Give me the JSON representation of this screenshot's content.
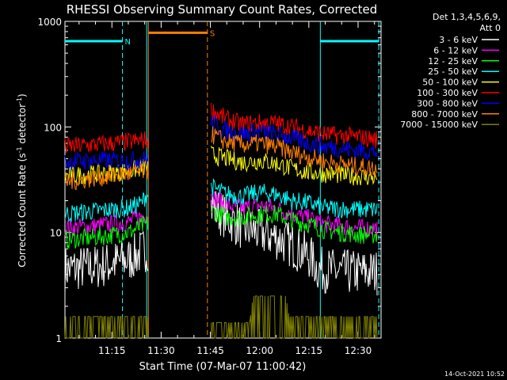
{
  "chart_data": {
    "type": "line",
    "title": "RHESSI Observing Summary Count Rates, Corrected",
    "xlabel": "Start Time (07-Mar-07 11:00:42)",
    "ylabel": "Corrected Count Rate (s",
    "ylabel_sup": "-1",
    "ylabel_mid": " detector",
    "ylabel_end": ")",
    "footer": "14-Oct-2021 10:52",
    "y_scale": "log",
    "ylim": [
      1,
      1000
    ],
    "y_ticks": [
      "1",
      "10",
      "100",
      "1000"
    ],
    "x_range_minutes": [
      0.7,
      97.0
    ],
    "x_ticks": [
      {
        "label": "11:15",
        "min": 15
      },
      {
        "label": "11:30",
        "min": 30
      },
      {
        "label": "11:45",
        "min": 45
      },
      {
        "label": "12:00",
        "min": 60
      },
      {
        "label": "12:15",
        "min": 75
      },
      {
        "label": "12:30",
        "min": 90
      }
    ],
    "legend": {
      "header_line1": "Det 1,3,4,5,6,9,",
      "header_line2": "Att 0",
      "placement": "right"
    },
    "flags": [
      {
        "label": "N",
        "color": "#00ffff",
        "segments": [
          [
            0.7,
            18.2
          ],
          [
            78.5,
            96.3
          ]
        ],
        "level": 650,
        "boundaries": [
          18.2,
          96.3
        ],
        "solid_boundaries": [
          25.6,
          78.5
        ]
      },
      {
        "label": "S",
        "color": "#ff8000",
        "segments": [
          [
            26.1,
            44.1
          ]
        ],
        "level": 780,
        "boundaries": [
          44.1
        ],
        "solid_boundaries": [
          26.1
        ]
      }
    ],
    "gaps": [
      [
        26.1,
        45.2
      ]
    ],
    "series": [
      {
        "name": "3 - 6 keV",
        "color": "#ffffff",
        "points": [
          [
            0.7,
            4.5
          ],
          [
            10,
            4.7
          ],
          [
            20,
            5.5
          ],
          [
            25.5,
            7
          ],
          [
            45.2,
            18
          ],
          [
            50,
            14
          ],
          [
            55,
            11
          ],
          [
            60,
            10
          ],
          [
            65,
            9
          ],
          [
            70,
            7.5
          ],
          [
            75,
            6
          ],
          [
            78,
            4.5
          ],
          [
            85,
            4.2
          ],
          [
            96,
            4.2
          ]
        ]
      },
      {
        "name": "6 - 12 keV",
        "color": "#ff00ff",
        "points": [
          [
            0.7,
            11
          ],
          [
            10,
            11.5
          ],
          [
            20,
            12.5
          ],
          [
            25.5,
            15
          ],
          [
            45.2,
            22
          ],
          [
            50,
            18
          ],
          [
            55,
            17
          ],
          [
            60,
            18
          ],
          [
            65,
            17
          ],
          [
            70,
            15
          ],
          [
            75,
            13.5
          ],
          [
            80,
            12
          ],
          [
            90,
            11
          ],
          [
            96,
            11
          ]
        ]
      },
      {
        "name": "12 - 25 keV",
        "color": "#00ff00",
        "points": [
          [
            0.7,
            8.5
          ],
          [
            10,
            9
          ],
          [
            20,
            10
          ],
          [
            25.5,
            12
          ],
          [
            45.2,
            16
          ],
          [
            50,
            14
          ],
          [
            55,
            14
          ],
          [
            60,
            15
          ],
          [
            65,
            15
          ],
          [
            70,
            13
          ],
          [
            75,
            12
          ],
          [
            80,
            10.5
          ],
          [
            90,
            9.5
          ],
          [
            96,
            9.5
          ]
        ]
      },
      {
        "name": "25 - 50 keV",
        "color": "#00ffff",
        "points": [
          [
            0.7,
            15
          ],
          [
            10,
            16
          ],
          [
            20,
            17
          ],
          [
            24,
            19
          ],
          [
            25.5,
            23
          ],
          [
            45.2,
            27
          ],
          [
            50,
            23
          ],
          [
            55,
            22
          ],
          [
            60,
            24
          ],
          [
            65,
            23
          ],
          [
            70,
            20
          ],
          [
            75,
            19
          ],
          [
            80,
            17
          ],
          [
            90,
            16.5
          ],
          [
            96,
            16.5
          ]
        ]
      },
      {
        "name": "50 - 100 keV",
        "color": "#ffff00",
        "points": [
          [
            0.7,
            34
          ],
          [
            10,
            36
          ],
          [
            20,
            38
          ],
          [
            25.5,
            42
          ],
          [
            45.2,
            55
          ],
          [
            50,
            50
          ],
          [
            55,
            46
          ],
          [
            60,
            48
          ],
          [
            65,
            45
          ],
          [
            70,
            40
          ],
          [
            75,
            37
          ],
          [
            80,
            36
          ],
          [
            90,
            34
          ],
          [
            96,
            33
          ]
        ]
      },
      {
        "name": "100 - 300 keV",
        "color": "#ff0000",
        "points": [
          [
            0.7,
            65
          ],
          [
            10,
            68
          ],
          [
            20,
            72
          ],
          [
            25.5,
            75
          ],
          [
            45.2,
            145
          ],
          [
            50,
            118
          ],
          [
            55,
            105
          ],
          [
            60,
            110
          ],
          [
            65,
            108
          ],
          [
            70,
            100
          ],
          [
            75,
            92
          ],
          [
            80,
            85
          ],
          [
            90,
            80
          ],
          [
            96,
            76
          ]
        ]
      },
      {
        "name": "300 - 800 keV",
        "color": "#0000ff",
        "points": [
          [
            0.7,
            47
          ],
          [
            10,
            48
          ],
          [
            20,
            48
          ],
          [
            25.5,
            50
          ],
          [
            45.2,
            110
          ],
          [
            50,
            92
          ],
          [
            55,
            86
          ],
          [
            60,
            90
          ],
          [
            65,
            85
          ],
          [
            70,
            78
          ],
          [
            75,
            70
          ],
          [
            80,
            65
          ],
          [
            90,
            60
          ],
          [
            96,
            58
          ]
        ]
      },
      {
        "name": "800 - 7000 keV",
        "color": "#ff8000",
        "points": [
          [
            0.7,
            30
          ],
          [
            10,
            33
          ],
          [
            20,
            36
          ],
          [
            25.5,
            38
          ],
          [
            45.2,
            85
          ],
          [
            50,
            72
          ],
          [
            55,
            68
          ],
          [
            60,
            70
          ],
          [
            65,
            65
          ],
          [
            70,
            57
          ],
          [
            75,
            52
          ],
          [
            80,
            47
          ],
          [
            90,
            42
          ],
          [
            96,
            40
          ]
        ]
      },
      {
        "name": "7000 - 15000 keV",
        "color": "#808000",
        "points": [
          [
            0.7,
            1.6
          ],
          [
            10,
            1.6
          ],
          [
            25.5,
            1.6
          ],
          [
            45.2,
            1.4
          ],
          [
            57,
            1.4
          ],
          [
            58,
            2.5
          ],
          [
            68,
            2.5
          ],
          [
            69,
            1.6
          ],
          [
            96,
            1.6
          ]
        ]
      }
    ]
  }
}
